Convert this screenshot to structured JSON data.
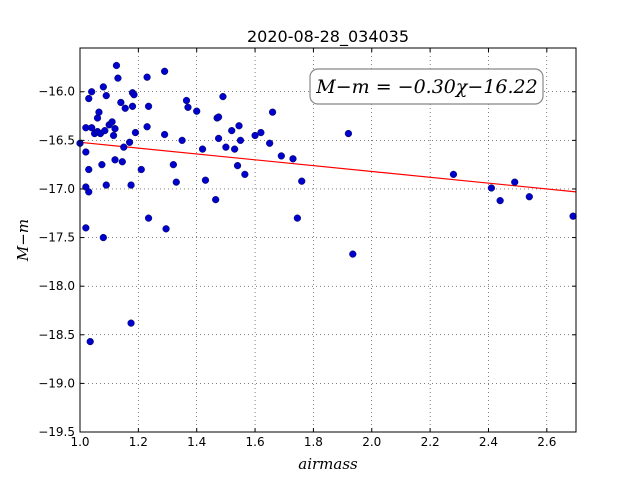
{
  "chart_data": {
    "type": "scatter",
    "title": "2020-08-28_034035",
    "xlabel": "airmass",
    "ylabel": "M−m",
    "xlim": [
      1.0,
      2.7
    ],
    "ylim": [
      -19.5,
      -15.55
    ],
    "x_inverted": false,
    "y_inverted": true,
    "grid": true,
    "grid_style": "dotted",
    "x_ticks": [
      1.0,
      1.2,
      1.4,
      1.6,
      1.8,
      2.0,
      2.2,
      2.4,
      2.6
    ],
    "x_tick_labels": [
      "1.0",
      "1.2",
      "1.4",
      "1.6",
      "1.8",
      "2.0",
      "2.2",
      "2.4",
      "2.6"
    ],
    "y_ticks": [
      -16.0,
      -16.5,
      -17.0,
      -17.5,
      -18.0,
      -18.5,
      -19.0,
      -19.5
    ],
    "y_tick_labels": [
      "−16.0",
      "−16.5",
      "−17.0",
      "−17.5",
      "−18.0",
      "−18.5",
      "−19.0",
      "−19.5"
    ],
    "annotation": "M−m = −0.30χ−16.22",
    "fit": {
      "slope": -0.3,
      "intercept": -16.22,
      "color": "#ff0000"
    },
    "point_color": "#0000cc",
    "points": [
      [
        1.0,
        -16.53
      ],
      [
        1.02,
        -16.62
      ],
      [
        1.02,
        -16.37
      ],
      [
        1.02,
        -16.98
      ],
      [
        1.02,
        -17.4
      ],
      [
        1.03,
        -16.07
      ],
      [
        1.03,
        -16.8
      ],
      [
        1.03,
        -17.03
      ],
      [
        1.035,
        -18.57
      ],
      [
        1.04,
        -16.0
      ],
      [
        1.04,
        -16.37
      ],
      [
        1.05,
        -16.43
      ],
      [
        1.06,
        -16.41
      ],
      [
        1.06,
        -16.27
      ],
      [
        1.065,
        -16.21
      ],
      [
        1.07,
        -16.43
      ],
      [
        1.075,
        -16.75
      ],
      [
        1.08,
        -15.95
      ],
      [
        1.08,
        -17.5
      ],
      [
        1.085,
        -16.4
      ],
      [
        1.09,
        -16.04
      ],
      [
        1.09,
        -16.96
      ],
      [
        1.1,
        -16.34
      ],
      [
        1.11,
        -16.31
      ],
      [
        1.115,
        -16.45
      ],
      [
        1.12,
        -16.38
      ],
      [
        1.12,
        -16.7
      ],
      [
        1.125,
        -15.73
      ],
      [
        1.13,
        -15.86
      ],
      [
        1.14,
        -16.11
      ],
      [
        1.145,
        -16.72
      ],
      [
        1.15,
        -16.57
      ],
      [
        1.155,
        -16.17
      ],
      [
        1.17,
        -16.52
      ],
      [
        1.175,
        -16.96
      ],
      [
        1.175,
        -18.38
      ],
      [
        1.18,
        -16.15
      ],
      [
        1.18,
        -16.01
      ],
      [
        1.185,
        -16.03
      ],
      [
        1.19,
        -16.42
      ],
      [
        1.21,
        -16.8
      ],
      [
        1.23,
        -16.36
      ],
      [
        1.23,
        -15.85
      ],
      [
        1.235,
        -16.15
      ],
      [
        1.235,
        -17.3
      ],
      [
        1.29,
        -16.44
      ],
      [
        1.29,
        -15.79
      ],
      [
        1.295,
        -17.41
      ],
      [
        1.32,
        -16.75
      ],
      [
        1.33,
        -16.93
      ],
      [
        1.35,
        -16.5
      ],
      [
        1.365,
        -16.09
      ],
      [
        1.37,
        -16.16
      ],
      [
        1.4,
        -16.2
      ],
      [
        1.42,
        -16.59
      ],
      [
        1.43,
        -16.91
      ],
      [
        1.465,
        -17.11
      ],
      [
        1.47,
        -16.27
      ],
      [
        1.475,
        -16.26
      ],
      [
        1.475,
        -16.48
      ],
      [
        1.49,
        -16.05
      ],
      [
        1.5,
        -16.57
      ],
      [
        1.52,
        -16.4
      ],
      [
        1.53,
        -16.59
      ],
      [
        1.54,
        -16.76
      ],
      [
        1.545,
        -16.35
      ],
      [
        1.55,
        -16.5
      ],
      [
        1.565,
        -16.85
      ],
      [
        1.6,
        -16.45
      ],
      [
        1.62,
        -16.42
      ],
      [
        1.65,
        -16.53
      ],
      [
        1.66,
        -16.21
      ],
      [
        1.69,
        -16.66
      ],
      [
        1.73,
        -16.69
      ],
      [
        1.745,
        -17.3
      ],
      [
        1.76,
        -16.92
      ],
      [
        1.92,
        -16.43
      ],
      [
        1.935,
        -17.67
      ],
      [
        2.28,
        -16.85
      ],
      [
        2.41,
        -16.99
      ],
      [
        2.44,
        -17.12
      ],
      [
        2.49,
        -16.93
      ],
      [
        2.54,
        -17.08
      ],
      [
        2.69,
        -17.28
      ]
    ]
  }
}
